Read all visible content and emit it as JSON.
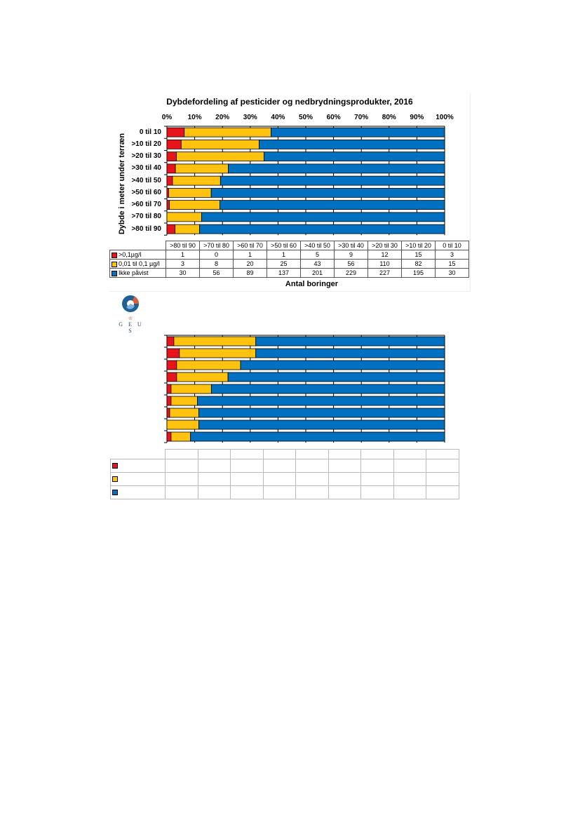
{
  "colors": {
    "red": "#e8141c",
    "yellow": "#ffc20e",
    "blue": "#0070c0",
    "logo_blue": "#1d5f96",
    "logo_orange": "#d9603b"
  },
  "logo": {
    "text": "G E U S",
    "icon": "geus-logo-icon"
  },
  "chart_data": [
    {
      "type": "bar",
      "stacked": "percent",
      "orientation": "horizontal",
      "title": "Dybdefordeling af pesticider og nedbrydningsprodukter, 2016",
      "ylabel": "Dybde i meter under terræn",
      "xlabel": "Antal boringer",
      "xlim": [
        0,
        100
      ],
      "x_ticks": [
        "0%",
        "10%",
        "20%",
        "30%",
        "40%",
        "50%",
        "60%",
        "70%",
        "80%",
        "90%",
        "100%"
      ],
      "categories": [
        "0 til 10",
        ">10 til 20",
        ">20 til 30",
        ">30 til 40",
        ">40 til 50",
        ">50 til 60",
        ">60 til 70",
        ">70 til 80",
        ">80 til 90"
      ],
      "series": [
        {
          "name": ">0,1µg/l",
          "color": "#e8141c",
          "values": [
            3,
            15,
            12,
            9,
            5,
            1,
            1,
            0,
            1
          ]
        },
        {
          "name": "0,01 til 0,1 µg/l",
          "color": "#ffc20e",
          "values": [
            15,
            82,
            110,
            56,
            43,
            25,
            20,
            8,
            3
          ]
        },
        {
          "name": "Ikke påvist",
          "color": "#0070c0",
          "values": [
            30,
            195,
            227,
            229,
            201,
            137,
            89,
            56,
            30
          ]
        }
      ],
      "grid": "vertical",
      "table": {
        "columns": [
          ">80 til 90",
          ">70 til 80",
          ">60 til 70",
          ">50 til 60",
          ">40 til 50",
          ">30 til 40",
          ">20 til 30",
          ">10 til 20",
          "0 til 10"
        ],
        "rows": [
          {
            "label": ">0,1µg/l",
            "color": "#e8141c",
            "values": [
              "1",
              "0",
              "1",
              "1",
              "5",
              "9",
              "12",
              "15",
              "3"
            ]
          },
          {
            "label": "0,01 til 0,1 µg/l",
            "color": "#ffc20e",
            "values": [
              "3",
              "8",
              "20",
              "25",
              "43",
              "56",
              "110",
              "82",
              "15"
            ]
          },
          {
            "label": "Ikke påvist",
            "color": "#0070c0",
            "values": [
              "30",
              "56",
              "89",
              "137",
              "201",
              "229",
              "227",
              "195",
              "30"
            ]
          }
        ]
      }
    },
    {
      "type": "bar",
      "stacked": "percent",
      "orientation": "horizontal",
      "xlim": [
        0,
        100
      ],
      "series": [
        {
          "color": "#e8141c",
          "values": [
            2.5,
            4.5,
            3.5,
            3.5,
            1.5,
            1.5,
            1,
            0,
            1.5
          ]
        },
        {
          "color": "#ffc20e",
          "values": [
            29.5,
            27.5,
            23,
            18.5,
            14.5,
            9.5,
            10.5,
            11.5,
            7
          ]
        },
        {
          "color": "#0070c0",
          "values": [
            68,
            68,
            73.5,
            78,
            84,
            89,
            88.5,
            88.5,
            91.5
          ]
        }
      ],
      "grid": "vertical",
      "table": {
        "columns": 9,
        "rows": 3
      }
    }
  ]
}
